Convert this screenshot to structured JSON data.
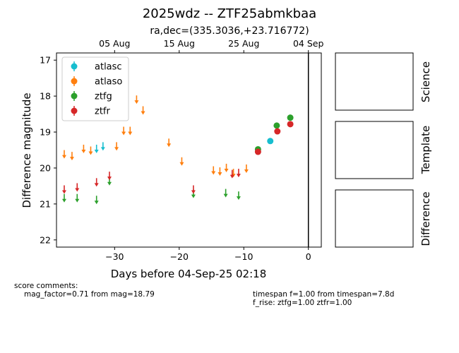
{
  "title": "2025wdz -- ZTF25abmkbaa",
  "subtitle": "ra,dec=(335.3036,+23.716772)",
  "panel_labels": [
    "Science",
    "Template",
    "Difference"
  ],
  "comments": {
    "left_heading": "score comments:",
    "left_line1": "mag_factor=0.71 from mag=18.79",
    "right_line1": "timespan f=1.00 from timespan=7.8d",
    "right_line2": "f_rise: ztfg=1.00 ztfr=1.00"
  },
  "chart_data": {
    "type": "scatter",
    "xlabel": "Days before 04-Sep-25 02:18",
    "ylabel": "Difference magnitude",
    "xlim": [
      -39.0,
      2.0
    ],
    "ylim": [
      22.2,
      16.8
    ],
    "y_inverted": true,
    "x_ticks": [
      -30,
      -20,
      -10,
      0
    ],
    "x_tick_labels": [
      "−30",
      "−20",
      "−10",
      "0"
    ],
    "y_ticks": [
      17,
      18,
      19,
      20,
      21,
      22
    ],
    "top_axis_ticks": [
      {
        "x": -30.0,
        "label": "05 Aug"
      },
      {
        "x": -20.0,
        "label": "15 Aug"
      },
      {
        "x": -10.0,
        "label": "25 Aug"
      },
      {
        "x": 0.0,
        "label": "04 Sep"
      }
    ],
    "vline_x": 0,
    "legend_position": "upper-left",
    "series": [
      {
        "name": "atlasc",
        "color": "#17becf",
        "detections": [
          {
            "x": -5.9,
            "y": 19.25,
            "err": 0.05
          }
        ],
        "upper_limits": [
          {
            "x": -32.8,
            "y": 19.45
          },
          {
            "x": -31.8,
            "y": 19.38
          }
        ]
      },
      {
        "name": "atlaso",
        "color": "#ff7f0e",
        "detections": [],
        "upper_limits": [
          {
            "x": -37.8,
            "y": 19.6
          },
          {
            "x": -36.6,
            "y": 19.65
          },
          {
            "x": -34.8,
            "y": 19.45
          },
          {
            "x": -33.7,
            "y": 19.5
          },
          {
            "x": -29.7,
            "y": 19.38
          },
          {
            "x": -28.6,
            "y": 18.95
          },
          {
            "x": -27.6,
            "y": 18.95
          },
          {
            "x": -26.6,
            "y": 18.08
          },
          {
            "x": -25.6,
            "y": 18.38
          },
          {
            "x": -21.6,
            "y": 19.28
          },
          {
            "x": -19.6,
            "y": 19.8
          },
          {
            "x": -14.7,
            "y": 20.05
          },
          {
            "x": -13.7,
            "y": 20.08
          },
          {
            "x": -12.7,
            "y": 19.98
          },
          {
            "x": -11.6,
            "y": 20.12
          },
          {
            "x": -9.6,
            "y": 20.0
          }
        ]
      },
      {
        "name": "ztfg",
        "color": "#2ca02c",
        "detections": [
          {
            "x": -7.8,
            "y": 19.48,
            "err": 0.06
          },
          {
            "x": -4.9,
            "y": 18.82,
            "err": 0.04
          },
          {
            "x": -2.8,
            "y": 18.6,
            "err": 0.04
          }
        ],
        "upper_limits": [
          {
            "x": -37.8,
            "y": 20.82
          },
          {
            "x": -35.8,
            "y": 20.82
          },
          {
            "x": -32.8,
            "y": 20.87
          },
          {
            "x": -30.8,
            "y": 20.35
          },
          {
            "x": -17.8,
            "y": 20.7
          },
          {
            "x": -12.8,
            "y": 20.68
          },
          {
            "x": -10.8,
            "y": 20.75
          }
        ]
      },
      {
        "name": "ztfr",
        "color": "#d62728",
        "detections": [
          {
            "x": -7.8,
            "y": 19.55,
            "err": 0.06
          },
          {
            "x": -4.8,
            "y": 18.98,
            "err": 0.04
          },
          {
            "x": -2.8,
            "y": 18.78,
            "err": 0.04
          }
        ],
        "upper_limits": [
          {
            "x": -37.8,
            "y": 20.58
          },
          {
            "x": -35.8,
            "y": 20.52
          },
          {
            "x": -32.8,
            "y": 20.38
          },
          {
            "x": -30.8,
            "y": 20.2
          },
          {
            "x": -17.8,
            "y": 20.58
          },
          {
            "x": -11.8,
            "y": 20.15
          },
          {
            "x": -10.8,
            "y": 20.12
          }
        ]
      }
    ]
  }
}
